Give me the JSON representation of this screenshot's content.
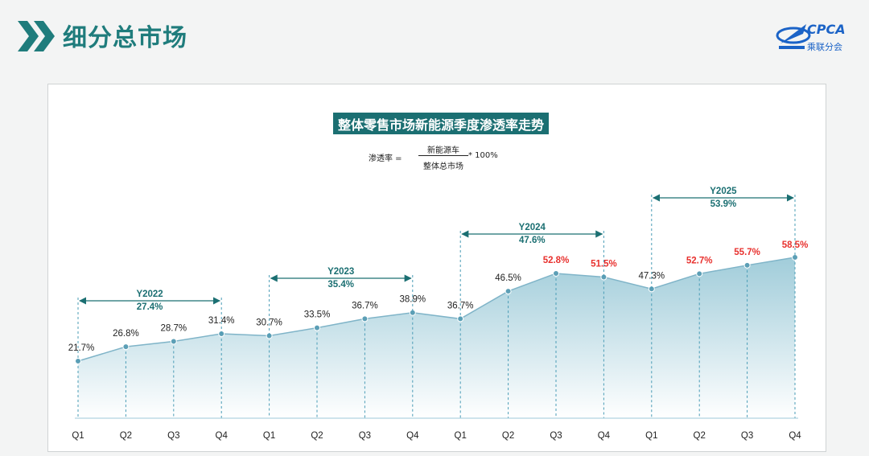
{
  "header": {
    "title": "细分总市场",
    "logo_text": "CPCA",
    "logo_sub": "乘联分会"
  },
  "chart_title": "整体零售市场新能源季度渗透率走势",
  "formula": {
    "label": "渗透率 =",
    "numerator": "新能源车",
    "denominator": "整体总市场",
    "suffix": "* 100%"
  },
  "colors": {
    "brand_teal": "#1b6f72",
    "line": "#7fb4c8",
    "marker": "#5c9fb6",
    "highlight_label": "#e8312e",
    "normal_label": "#222222"
  },
  "chart_data": {
    "type": "area",
    "title": "整体零售市场新能源季度渗透率走势",
    "unit": "%",
    "x": [
      "Q1",
      "Q2",
      "Q3",
      "Q4",
      "Q1",
      "Q2",
      "Q3",
      "Q4",
      "Q1",
      "Q2",
      "Q3",
      "Q4",
      "Q1",
      "Q2",
      "Q3",
      "Q4"
    ],
    "values": [
      21.7,
      26.8,
      28.7,
      31.4,
      30.7,
      33.5,
      36.7,
      38.9,
      36.7,
      46.5,
      52.8,
      51.5,
      47.3,
      52.7,
      55.7,
      58.5
    ],
    "labels": [
      "21.7%",
      "26.8%",
      "28.7%",
      "31.4%",
      "30.7%",
      "33.5%",
      "36.7%",
      "38.9%",
      "36.7%",
      "46.5%",
      "52.8%",
      "51.5%",
      "47.3%",
      "52.7%",
      "55.7%",
      "58.5%"
    ],
    "highlighted": [
      false,
      false,
      false,
      false,
      false,
      false,
      false,
      false,
      false,
      false,
      true,
      true,
      false,
      true,
      true,
      true
    ],
    "ylim": [
      0,
      60
    ],
    "grid": false,
    "year_annotations": [
      {
        "year": "Y2022",
        "value": "27.4%",
        "start_index": 0,
        "end_index": 3
      },
      {
        "year": "Y2023",
        "value": "35.4%",
        "start_index": 4,
        "end_index": 7
      },
      {
        "year": "Y2024",
        "value": "47.6%",
        "start_index": 8,
        "end_index": 11
      },
      {
        "year": "Y2025",
        "value": "53.9%",
        "start_index": 12,
        "end_index": 15
      }
    ]
  }
}
